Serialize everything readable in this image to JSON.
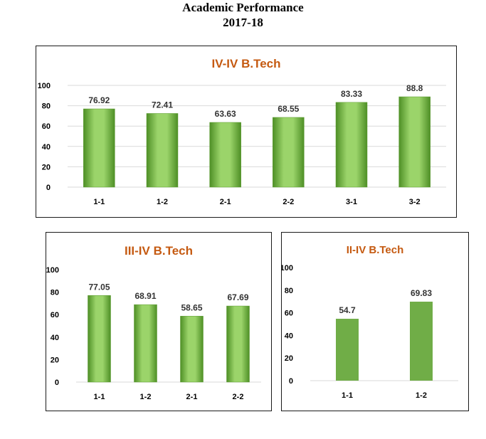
{
  "page": {
    "title_line1": "Academic Performance",
    "title_line2": "2017-18"
  },
  "colors": {
    "title_orange": "#C55A11",
    "bar_green_light": "#9BD46A",
    "bar_green_dark": "#4E8F26",
    "bar_green_flat": "#70AD47",
    "gridline": "#D9D9D9"
  },
  "chart_data": [
    {
      "type": "bar",
      "title": "IV-IV B.Tech",
      "categories": [
        "1-1",
        "1-2",
        "2-1",
        "2-2",
        "3-1",
        "3-2"
      ],
      "values": [
        76.92,
        72.41,
        63.63,
        68.55,
        83.33,
        88.8
      ],
      "data_labels": [
        "76.92",
        "72.41",
        "63.63",
        "68.55",
        "83.33",
        "88.8"
      ],
      "y_ticks": [
        "0",
        "20",
        "40",
        "60",
        "80",
        "100"
      ],
      "ylim": [
        0,
        100
      ],
      "grid": true,
      "style": "gradient"
    },
    {
      "type": "bar",
      "title": "III-IV B.Tech",
      "categories": [
        "1-1",
        "1-2",
        "2-1",
        "2-2"
      ],
      "values": [
        77.05,
        68.91,
        58.65,
        67.69
      ],
      "data_labels": [
        "77.05",
        "68.91",
        "58.65",
        "67.69"
      ],
      "y_ticks": [
        "0",
        "20",
        "40",
        "60",
        "80",
        "100"
      ],
      "ylim": [
        0,
        100
      ],
      "grid": false,
      "style": "gradient"
    },
    {
      "type": "bar",
      "title": "II-IV B.Tech",
      "categories": [
        "1-1",
        "1-2"
      ],
      "values": [
        54.7,
        69.83
      ],
      "data_labels": [
        "54.7",
        "69.83"
      ],
      "y_ticks": [
        "0",
        "20",
        "40",
        "60",
        "80",
        "100"
      ],
      "ylim": [
        0,
        100
      ],
      "grid": false,
      "style": "flat"
    }
  ]
}
